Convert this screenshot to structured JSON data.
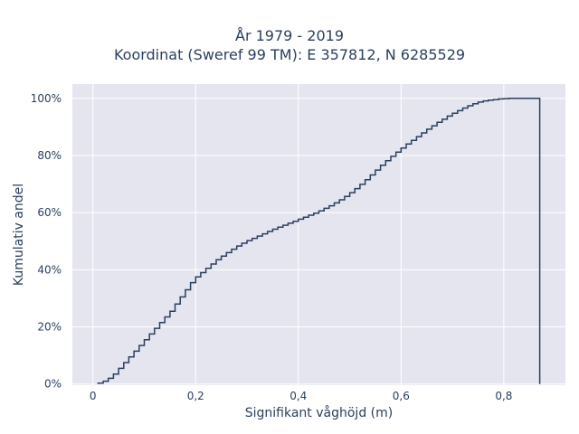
{
  "chart_data": {
    "type": "line",
    "style": "cumulative step",
    "title_lines": [
      "År 1979 - 2019",
      "Koordinat (Sweref 99 TM): E 357812, N 6285529"
    ],
    "xlabel": "Signifikant våghöjd (m)",
    "ylabel": "Kumulativ andel",
    "xlim": [
      -0.04,
      0.92
    ],
    "ylim": [
      -0.004,
      1.05
    ],
    "x_ticks": [
      0,
      0.2,
      0.4,
      0.6,
      0.8
    ],
    "x_tick_labels": [
      "0",
      "0,2",
      "0,4",
      "0,6",
      "0,8"
    ],
    "y_ticks": [
      0,
      0.2,
      0.4,
      0.6,
      0.8,
      1.0
    ],
    "y_tick_labels": [
      "0%",
      "20%",
      "40%",
      "60%",
      "80%",
      "100%"
    ],
    "grid": true,
    "line_color": "#2a3f5f",
    "plot_background": "#e5e5f0",
    "series": [
      {
        "x": [
          0.01,
          0.02,
          0.03,
          0.04,
          0.05,
          0.06,
          0.07,
          0.08,
          0.09,
          0.1,
          0.11,
          0.12,
          0.13,
          0.14,
          0.15,
          0.16,
          0.17,
          0.18,
          0.19,
          0.2,
          0.21,
          0.22,
          0.23,
          0.24,
          0.25,
          0.26,
          0.27,
          0.28,
          0.29,
          0.3,
          0.31,
          0.32,
          0.33,
          0.34,
          0.35,
          0.36,
          0.37,
          0.38,
          0.39,
          0.4,
          0.41,
          0.42,
          0.43,
          0.44,
          0.45,
          0.46,
          0.47,
          0.48,
          0.49,
          0.5,
          0.51,
          0.52,
          0.53,
          0.54,
          0.55,
          0.56,
          0.57,
          0.58,
          0.59,
          0.6,
          0.61,
          0.62,
          0.63,
          0.64,
          0.65,
          0.66,
          0.67,
          0.68,
          0.69,
          0.7,
          0.71,
          0.72,
          0.73,
          0.74,
          0.75,
          0.76,
          0.77,
          0.78,
          0.79,
          0.8,
          0.81,
          0.82,
          0.83,
          0.84,
          0.85,
          0.86,
          0.87
        ],
        "y": [
          0.003,
          0.01,
          0.02,
          0.035,
          0.055,
          0.075,
          0.095,
          0.115,
          0.135,
          0.155,
          0.175,
          0.195,
          0.215,
          0.235,
          0.255,
          0.28,
          0.305,
          0.33,
          0.355,
          0.375,
          0.39,
          0.405,
          0.42,
          0.435,
          0.448,
          0.46,
          0.472,
          0.483,
          0.493,
          0.502,
          0.51,
          0.518,
          0.526,
          0.534,
          0.542,
          0.549,
          0.556,
          0.563,
          0.57,
          0.577,
          0.584,
          0.591,
          0.598,
          0.606,
          0.615,
          0.624,
          0.634,
          0.645,
          0.657,
          0.67,
          0.684,
          0.699,
          0.715,
          0.732,
          0.749,
          0.766,
          0.782,
          0.797,
          0.812,
          0.826,
          0.84,
          0.853,
          0.866,
          0.879,
          0.892,
          0.904,
          0.916,
          0.927,
          0.938,
          0.948,
          0.957,
          0.966,
          0.974,
          0.981,
          0.987,
          0.991,
          0.994,
          0.996,
          0.998,
          0.999,
          1.0,
          1.0,
          1.0,
          1.0,
          1.0,
          1.0,
          1.0
        ]
      }
    ]
  }
}
